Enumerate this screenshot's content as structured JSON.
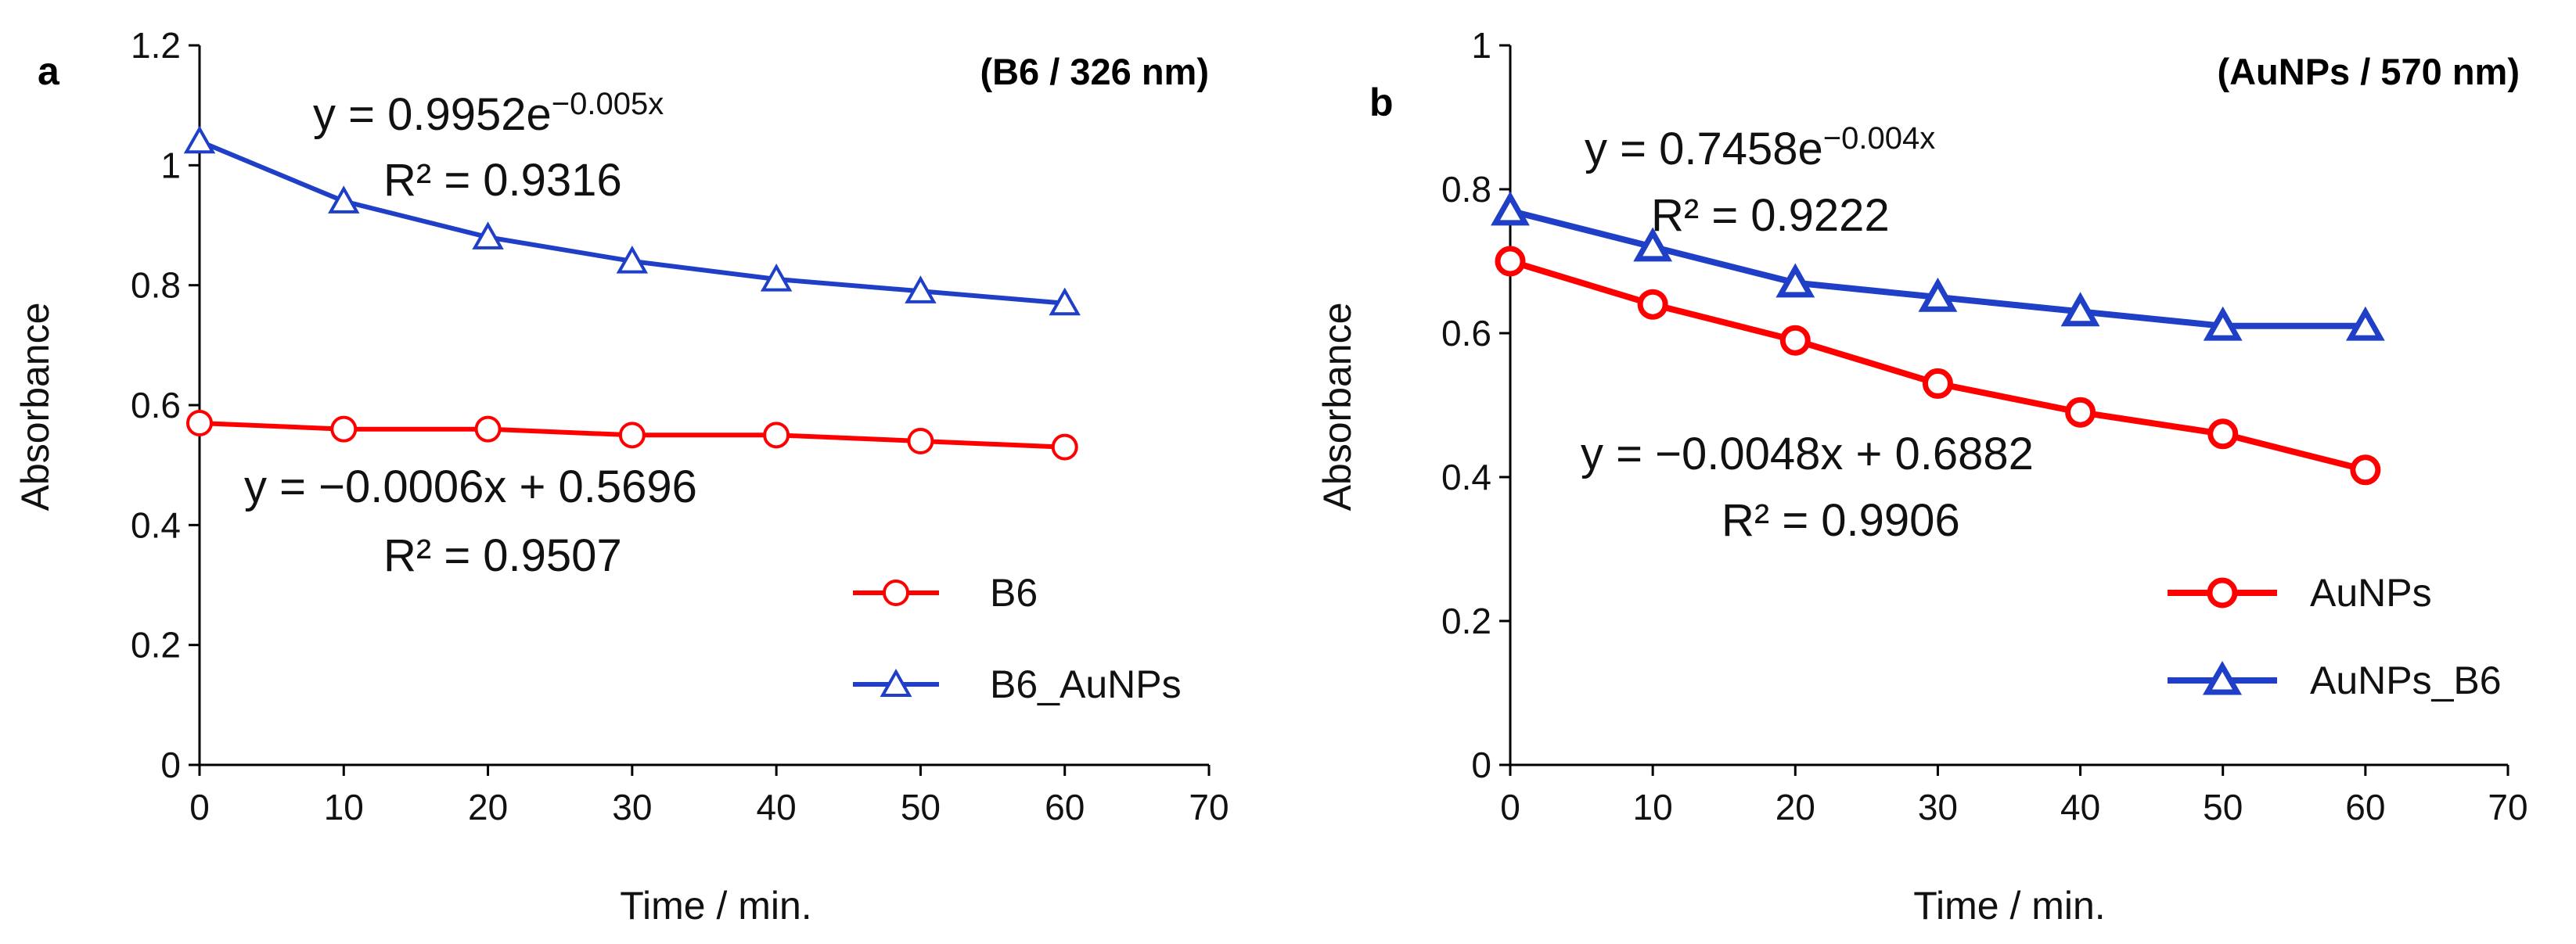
{
  "chart_data": [
    {
      "type": "line",
      "panel_label": "a",
      "title": "(B6 / 326 nm)",
      "xlabel": "Time / min.",
      "ylabel": "Absorbance",
      "xlim": [
        0,
        70
      ],
      "ylim": [
        0,
        1.2
      ],
      "x_ticks": [
        "0",
        "10",
        "20",
        "30",
        "40",
        "50",
        "60",
        "70"
      ],
      "y_ticks": [
        "0",
        "0.2",
        "0.4",
        "0.6",
        "0.8",
        "1",
        "1.2"
      ],
      "grid": false,
      "legend_position": "bottom-right",
      "x": [
        0,
        10,
        20,
        30,
        40,
        50,
        60
      ],
      "series": [
        {
          "name": "B6",
          "marker": "circle",
          "color": "#ff0000",
          "values": [
            0.57,
            0.56,
            0.56,
            0.55,
            0.55,
            0.54,
            0.53
          ],
          "fit_equation": "y = −0.0006x + 0.5696",
          "fit_r2": "R² = 0.9507"
        },
        {
          "name": "B6_AuNPs",
          "marker": "triangle",
          "color": "#1f3fc6",
          "values": [
            1.04,
            0.94,
            0.88,
            0.84,
            0.81,
            0.79,
            0.77
          ],
          "fit_equation_base": "y = 0.9952e",
          "fit_equation_exp": "−0.005x",
          "fit_r2": "R² = 0.9316"
        }
      ]
    },
    {
      "type": "line",
      "panel_label": "b",
      "title": "(AuNPs / 570 nm)",
      "xlabel": "Time / min.",
      "ylabel": "Absorbance",
      "xlim": [
        0,
        70
      ],
      "ylim": [
        0,
        1
      ],
      "x_ticks": [
        "0",
        "10",
        "20",
        "30",
        "40",
        "50",
        "60",
        "70"
      ],
      "y_ticks": [
        "0",
        "0.2",
        "0.4",
        "0.6",
        "0.8",
        "1"
      ],
      "grid": false,
      "legend_position": "bottom-right",
      "x": [
        0,
        10,
        20,
        30,
        40,
        50,
        60
      ],
      "series": [
        {
          "name": "AuNPs",
          "marker": "circle",
          "color": "#ff0000",
          "values": [
            0.7,
            0.64,
            0.59,
            0.53,
            0.49,
            0.46,
            0.41
          ],
          "fit_equation": "y = −0.0048x + 0.6882",
          "fit_r2": "R² = 0.9906"
        },
        {
          "name": "AuNPs_B6",
          "marker": "triangle",
          "color": "#1f3fc6",
          "values": [
            0.77,
            0.72,
            0.67,
            0.65,
            0.63,
            0.61,
            0.61
          ],
          "fit_equation_base": "y = 0.7458e",
          "fit_equation_exp": "−0.004x",
          "fit_r2": "R² = 0.9222"
        }
      ]
    }
  ]
}
